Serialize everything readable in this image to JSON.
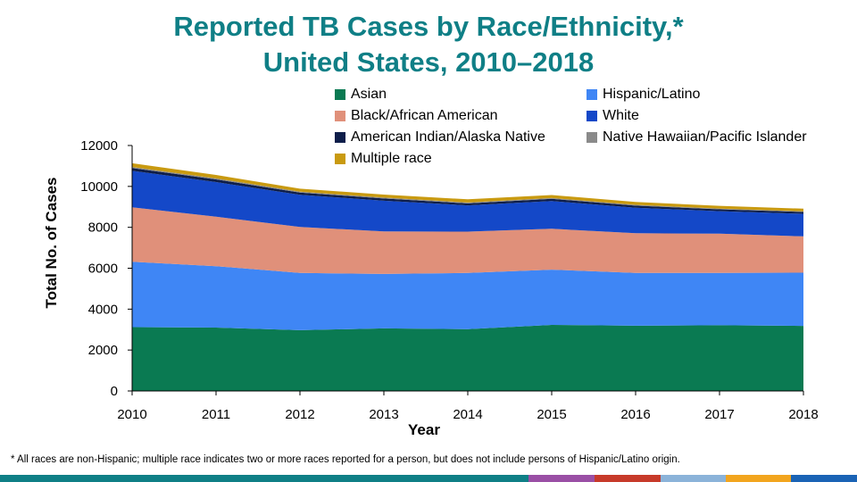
{
  "title": {
    "line1": "Reported TB Cases by Race/Ethnicity,*",
    "line2": "United States, 2010–2018"
  },
  "footnote": "*  All races are non-Hispanic;  multiple race indicates two or more races reported for a person, but does not include persons of Hispanic/Latino origin.",
  "chart_data": {
    "type": "area",
    "stacked": true,
    "title": "Reported TB Cases by Race/Ethnicity,* United States, 2010–2018",
    "xlabel": "Year",
    "ylabel": "Total No. of Cases",
    "x": [
      "2010",
      "2011",
      "2012",
      "2013",
      "2014",
      "2015",
      "2016",
      "2017",
      "2018"
    ],
    "ylim": [
      0,
      12000
    ],
    "yticks": [
      "0",
      "2000",
      "4000",
      "6000",
      "8000",
      "10000",
      "12000"
    ],
    "grid": false,
    "legend_position": "top",
    "series": [
      {
        "name": "Asian",
        "color": "#0a7a52",
        "values": [
          3120,
          3100,
          2970,
          3060,
          3020,
          3230,
          3190,
          3210,
          3180
        ]
      },
      {
        "name": "Hispanic/Latino",
        "color": "#3f86f5",
        "values": [
          3200,
          3000,
          2800,
          2660,
          2750,
          2700,
          2580,
          2560,
          2600
        ]
      },
      {
        "name": "Black/African American",
        "color": "#e0907a",
        "values": [
          2660,
          2420,
          2250,
          2080,
          2020,
          2000,
          1940,
          1920,
          1780
        ]
      },
      {
        "name": "White",
        "color": "#1448c8",
        "values": [
          1780,
          1690,
          1570,
          1500,
          1280,
          1350,
          1250,
          1100,
          1100
        ]
      },
      {
        "name": "American Indian/Alaska Native",
        "color": "#0e1e4a",
        "values": [
          140,
          130,
          110,
          110,
          100,
          110,
          100,
          90,
          90
        ]
      },
      {
        "name": "Native Hawaiian/Pacific Islander",
        "color": "#8a8a8a",
        "values": [
          50,
          50,
          40,
          40,
          40,
          40,
          40,
          30,
          30
        ]
      },
      {
        "name": "Multiple race",
        "color": "#c99a10",
        "values": [
          180,
          170,
          150,
          150,
          160,
          150,
          140,
          140,
          130
        ]
      }
    ]
  },
  "legend_order": [
    0,
    1,
    2,
    3,
    4,
    5,
    6
  ],
  "bottom_bar_colors": [
    "#0f7f86",
    "#9a4fa5",
    "#c73a2a",
    "#8bb3d9",
    "#f2a51e",
    "#1a63b5"
  ]
}
